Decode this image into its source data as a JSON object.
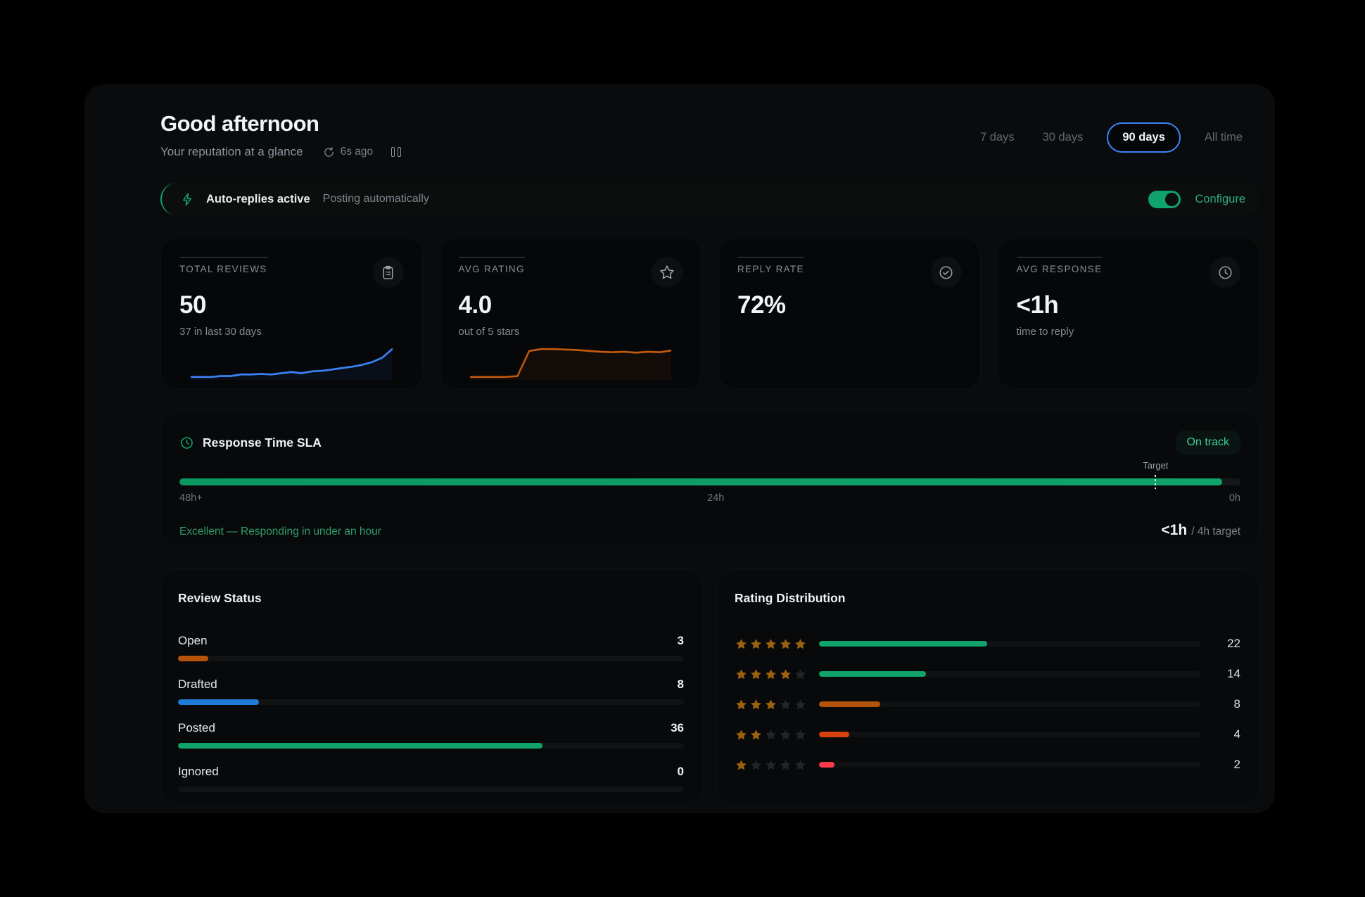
{
  "colors": {
    "accent_blue": "#3b82f6",
    "accent_green": "#10a36b",
    "orange": "#b45309",
    "red_orange": "#d8400e",
    "red": "#fb3b4c",
    "star_filled": "#9a6110",
    "star_empty": "#212529"
  },
  "header": {
    "greeting": "Good afternoon",
    "subtitle": "Your reputation at a glance",
    "refreshed": "6s ago"
  },
  "time_ranges": {
    "options": [
      "7 days",
      "30 days",
      "90 days",
      "All time"
    ],
    "selected": "90 days"
  },
  "banner": {
    "icon": "lightning-icon",
    "title": "Auto-replies active",
    "subtitle": "Posting automatically",
    "toggle_on": true,
    "action": "Configure"
  },
  "stats": [
    {
      "label": "TOTAL REVIEWS",
      "value": "50",
      "subtext": "37 in last 30 days",
      "icon": "clipboard-icon",
      "spark_color": "#3b82f6",
      "spark": [
        10,
        10,
        10,
        10.3,
        10.3,
        10.8,
        10.8,
        11,
        10.8,
        11.2,
        11.6,
        11.2,
        11.8,
        12,
        12.4,
        12.9,
        13.3,
        13.9,
        14.8,
        16.2,
        19
      ]
    },
    {
      "label": "AVG RATING",
      "value": "4.0",
      "subtext": "out of 5 stars",
      "icon": "star-icon",
      "spark_color": "#c2590b",
      "spark": [
        10,
        10,
        10,
        10,
        10.2,
        15.8,
        16.2,
        16.2,
        16.1,
        16,
        15.8,
        15.6,
        15.5,
        15.6,
        15.4,
        15.6,
        15.5,
        15.9
      ]
    },
    {
      "label": "REPLY RATE",
      "value": "72%",
      "subtext": "",
      "icon": "check-circle-icon"
    },
    {
      "label": "AVG RESPONSE",
      "value": "<1h",
      "subtext": "time to reply",
      "icon": "clock-icon"
    }
  ],
  "sla": {
    "icon": "clock-icon",
    "title": "Response Time SLA",
    "status": "On track",
    "target_label": "Target",
    "progress_pct": 98.3,
    "target_pct": 92,
    "scale": [
      "48h+",
      "24h",
      "0h"
    ],
    "message": "Excellent — Responding in under an hour",
    "value": "<1h",
    "value_suffix": "/ 4h target"
  },
  "review_status": {
    "title": "Review Status",
    "max": 50,
    "rows": [
      {
        "label": "Open",
        "value": 3,
        "color": "#b45309"
      },
      {
        "label": "Drafted",
        "value": 8,
        "color": "#1f7dd8"
      },
      {
        "label": "Posted",
        "value": 36,
        "color": "#10a36b"
      },
      {
        "label": "Ignored",
        "value": 0,
        "color": "#10a36b"
      }
    ]
  },
  "rating_distribution": {
    "title": "Rating Distribution",
    "max": 50,
    "rows": [
      {
        "stars": 5,
        "count": 22,
        "color": "#10a36b"
      },
      {
        "stars": 4,
        "count": 14,
        "color": "#10a36b"
      },
      {
        "stars": 3,
        "count": 8,
        "color": "#b45309"
      },
      {
        "stars": 2,
        "count": 4,
        "color": "#d8400e"
      },
      {
        "stars": 1,
        "count": 2,
        "color": "#fb3b4c"
      }
    ]
  }
}
